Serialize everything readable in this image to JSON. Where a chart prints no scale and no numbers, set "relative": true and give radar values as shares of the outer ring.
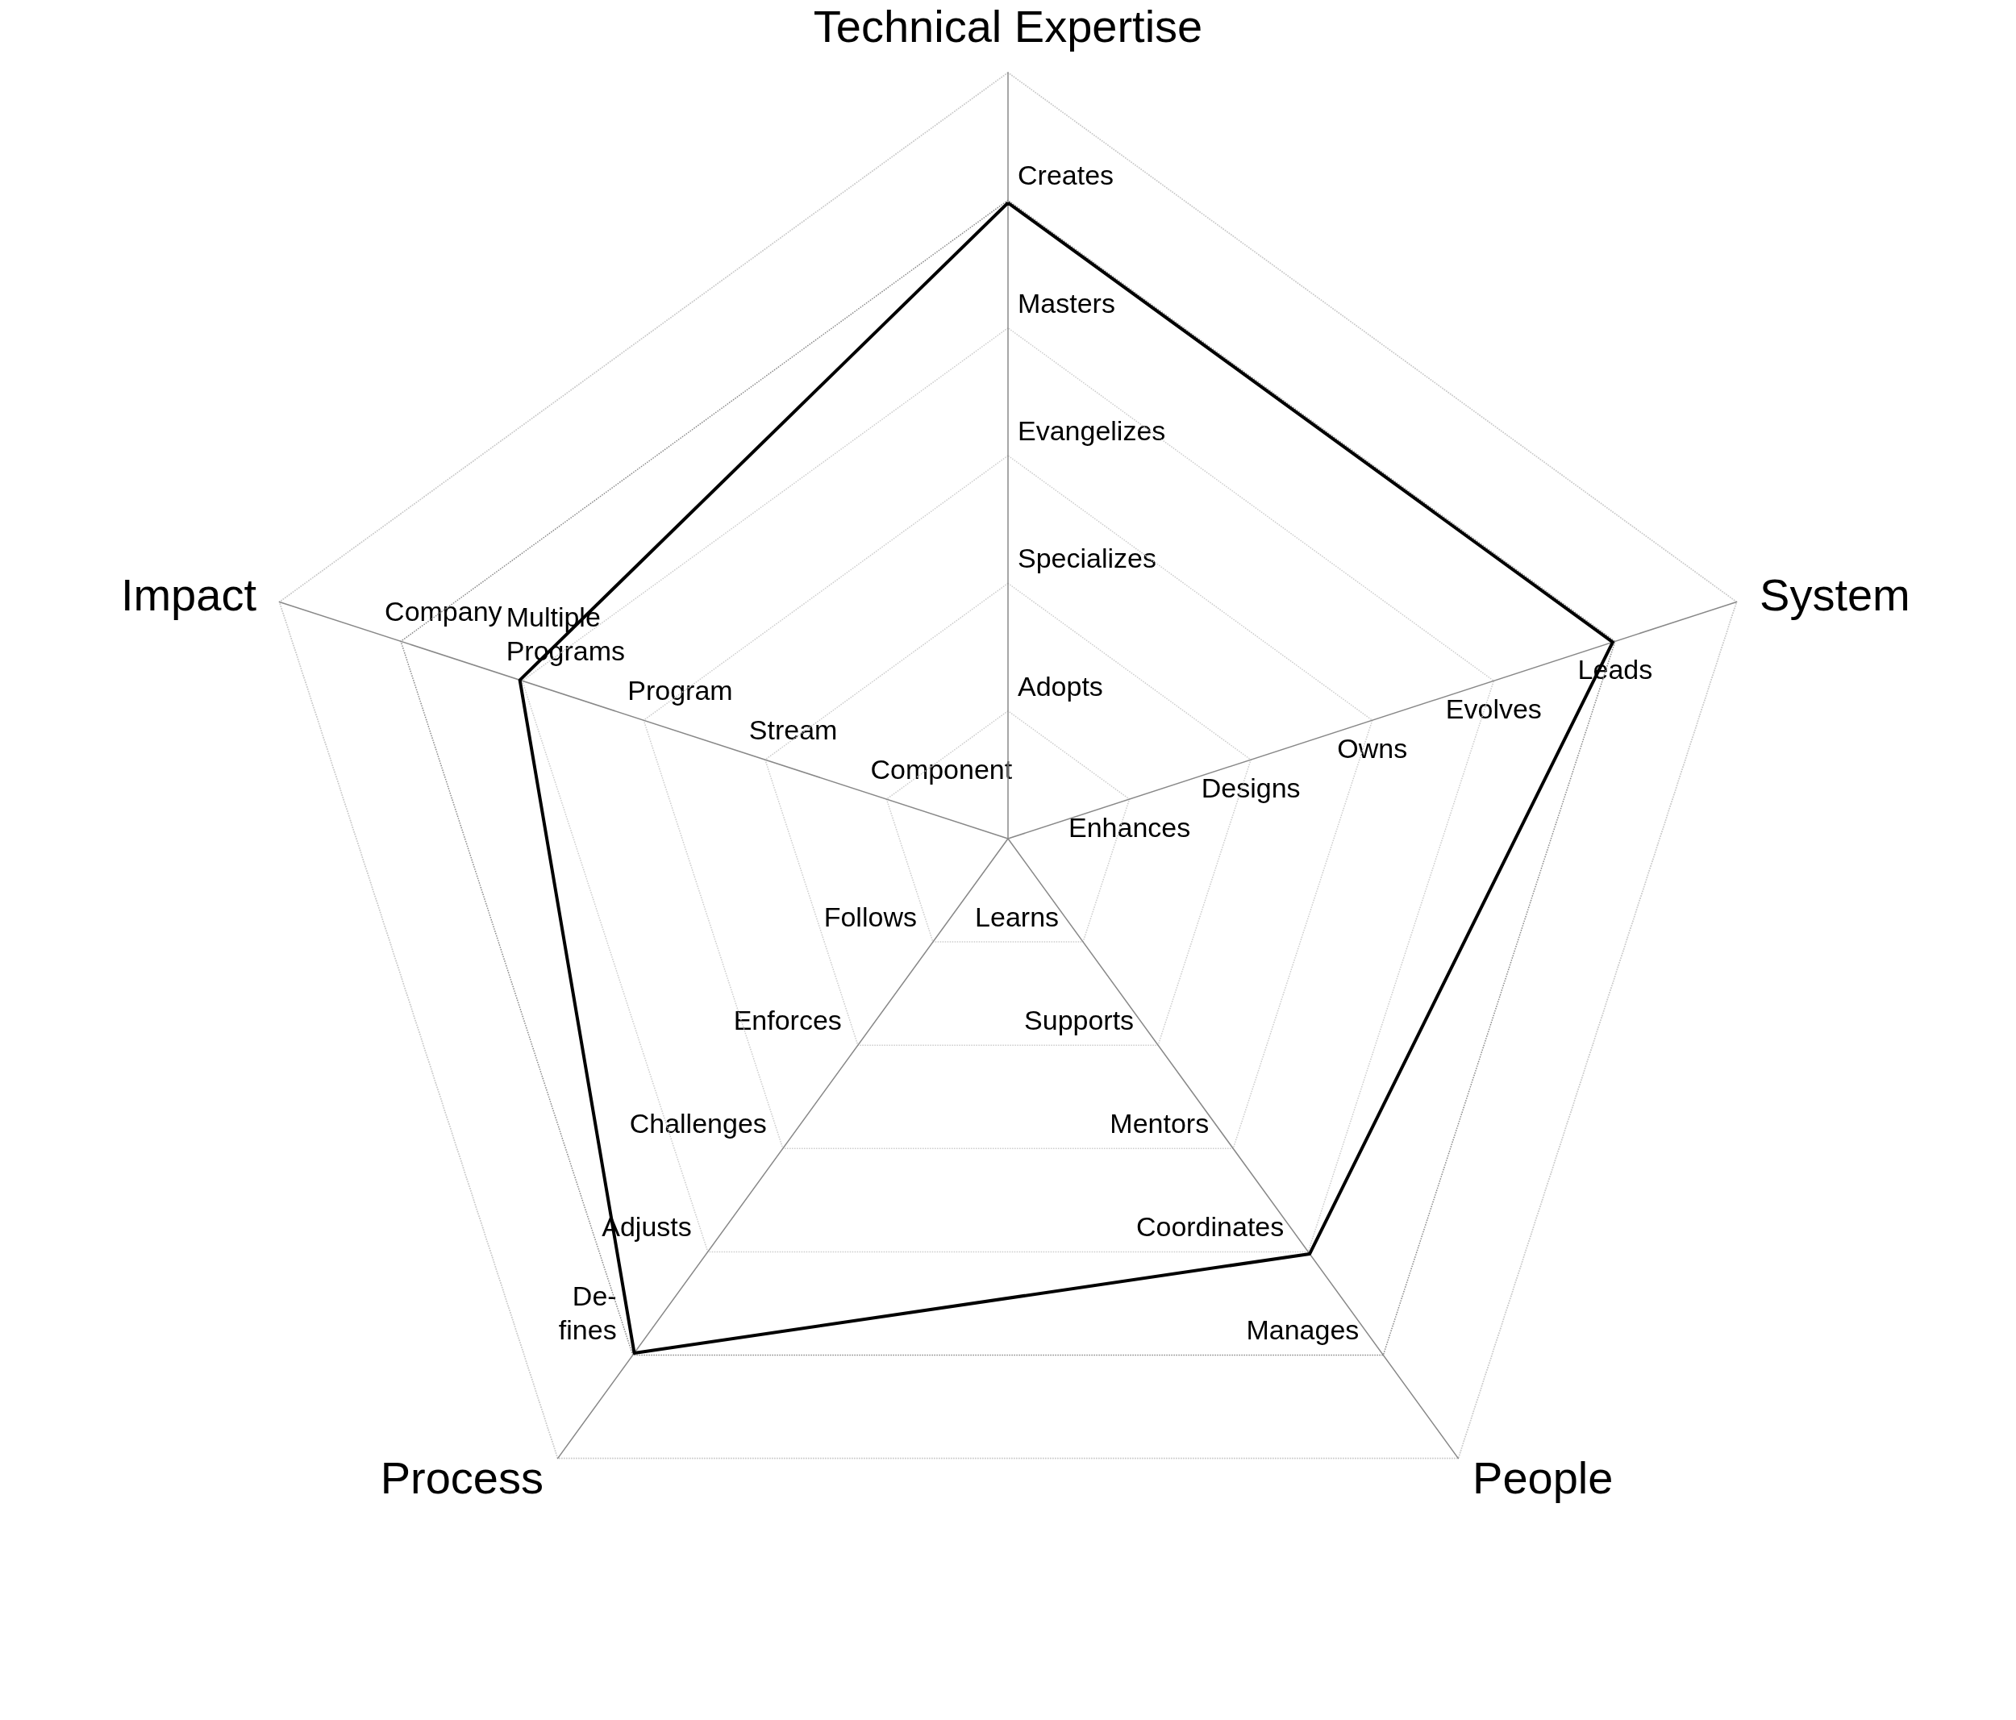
{
  "chart_data": {
    "type": "radar",
    "relative": true,
    "marker": "none",
    "line_style": "solid",
    "categories": [
      "Technical Expertise",
      "System",
      "People",
      "Process",
      "Impact"
    ],
    "series": [
      {
        "color": "#000000",
        "values": [
          0.83,
          0.83,
          0.67,
          0.83,
          0.67
        ]
      }
    ],
    "annotations": [
      {
        "text": "Adopts",
        "x": "Technical Expertise"
      },
      {
        "text": "Specializes",
        "x": "Technical Expertise"
      },
      {
        "text": "Evangelizes",
        "x": "Technical Expertise"
      },
      {
        "text": "Masters",
        "x": "Technical Expertise"
      },
      {
        "text": "Creates",
        "x": "Technical Expertise"
      },
      {
        "text": "Enhances",
        "x": "System"
      },
      {
        "text": "Designs",
        "x": "System"
      },
      {
        "text": "Owns",
        "x": "System"
      },
      {
        "text": "Evolves",
        "x": "System"
      },
      {
        "text": "Leads",
        "x": "System"
      },
      {
        "text": "Learns",
        "x": "People"
      },
      {
        "text": "Supports",
        "x": "People"
      },
      {
        "text": "Mentors",
        "x": "People"
      },
      {
        "text": "Coordinates",
        "x": "People"
      },
      {
        "text": "Manages",
        "x": "People"
      },
      {
        "text": "Follows",
        "x": "Process"
      },
      {
        "text": "Enforces",
        "x": "Process"
      },
      {
        "text": "Challenges",
        "x": "Process"
      },
      {
        "text": "Adjusts",
        "x": "Process"
      },
      {
        "text": "De-\nfines",
        "x": "Process"
      },
      {
        "text": "Component",
        "x": "Impact"
      },
      {
        "text": "Stream",
        "x": "Impact"
      },
      {
        "text": "Program",
        "x": "Impact"
      },
      {
        "text": "Multiple\nPrograms",
        "x": "Impact"
      },
      {
        "text": "Company",
        "x": "Impact"
      }
    ]
  }
}
